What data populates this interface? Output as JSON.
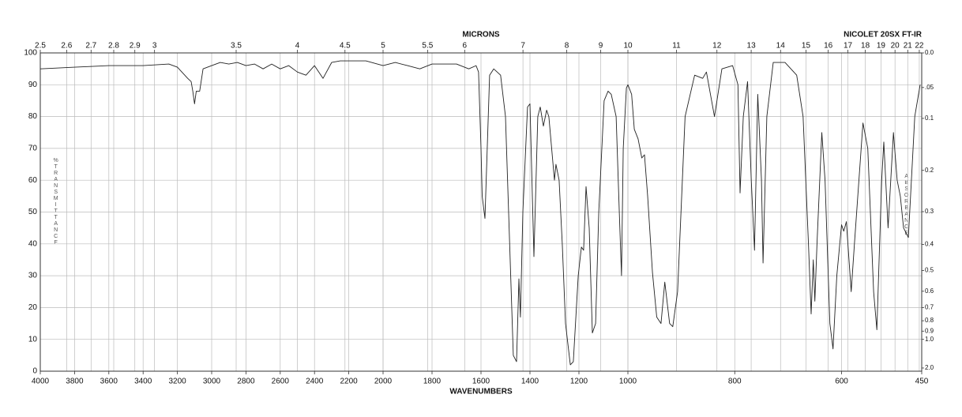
{
  "chart_data": {
    "type": "line",
    "title": "NICOLET 20SX FT-IR",
    "top_axis_label": "MICRONS",
    "xlabel": "WAVENUMBERS",
    "ylabel": "%TRANSMITTANCE",
    "y2label": "ABSORBANCE",
    "x_scale_breaks": [
      2000,
      1000
    ],
    "xlim": [
      4000,
      450
    ],
    "xticks": [
      4000,
      3800,
      3600,
      3400,
      3200,
      3000,
      2800,
      2600,
      2400,
      2200,
      2000,
      1800,
      1600,
      1400,
      1200,
      1000,
      800,
      600,
      450
    ],
    "micron_ticks": [
      2.5,
      2.6,
      2.7,
      2.8,
      2.9,
      3,
      3.5,
      4,
      4.5,
      5,
      5.5,
      6,
      7,
      8,
      9,
      10,
      11,
      12,
      13,
      14,
      15,
      16,
      17,
      18,
      19,
      20,
      21,
      22
    ],
    "ylim": [
      0,
      100
    ],
    "yticks": [
      0,
      10,
      20,
      30,
      40,
      50,
      60,
      70,
      80,
      90,
      100
    ],
    "y2ticks": [
      {
        "value": 0,
        "label": "0.0"
      },
      {
        "value": 0.05,
        "label": ".05"
      },
      0.1,
      0.2,
      0.3,
      0.4,
      0.5,
      0.6,
      0.7,
      0.8,
      0.9,
      {
        "value": 1,
        "label": "1.0"
      },
      {
        "value": 2,
        "label": "2.0"
      }
    ],
    "grid": true,
    "series": [
      {
        "color": "#222222",
        "x": [
          4000,
          3800,
          3600,
          3400,
          3250,
          3200,
          3140,
          3120,
          3110,
          3100,
          3090,
          3070,
          3050,
          3000,
          2950,
          2900,
          2850,
          2800,
          2750,
          2700,
          2650,
          2600,
          2550,
          2500,
          2450,
          2400,
          2350,
          2300,
          2250,
          2200,
          2100,
          2000,
          1950,
          1900,
          1850,
          1800,
          1700,
          1650,
          1620,
          1610,
          1600,
          1595,
          1584,
          1565,
          1548,
          1520,
          1500,
          1468,
          1455,
          1445,
          1439,
          1429,
          1410,
          1400,
          1384,
          1368,
          1358,
          1345,
          1332,
          1323,
          1300,
          1294,
          1281,
          1268,
          1255,
          1235,
          1223,
          1203,
          1190,
          1181,
          1171,
          1158,
          1145,
          1132,
          1119,
          1097,
          1081,
          1068,
          1048,
          1035,
          1026,
          1019,
          1006,
          1000,
          993,
          988,
          981,
          974,
          969,
          963,
          954,
          946,
          938,
          931,
          922,
          916,
          907,
          893,
          875,
          860,
          853,
          838,
          824,
          804,
          794,
          790,
          784,
          776,
          769,
          763,
          757,
          750,
          747,
          740,
          728,
          706,
          684,
          672,
          662,
          657,
          653,
          650,
          646,
          637,
          631,
          622,
          616,
          609,
          600,
          596,
          591,
          582,
          576,
          560,
          551,
          540,
          534,
          525,
          521,
          513,
          503,
          496,
          490,
          484,
          475,
          463,
          453
        ],
        "values": [
          95,
          95.5,
          96,
          96,
          96.5,
          95.5,
          92,
          91,
          88,
          84,
          88,
          88,
          95,
          96,
          97,
          96.5,
          97,
          96,
          96.5,
          95,
          96.5,
          95,
          96,
          94,
          93,
          96,
          92,
          97,
          97.5,
          97.5,
          97.5,
          96,
          97,
          96,
          95,
          96.5,
          96.5,
          95,
          96,
          94,
          70,
          55,
          48,
          93,
          95,
          93,
          80,
          5,
          3,
          29,
          17,
          50,
          83,
          84,
          36,
          80,
          83,
          77,
          82,
          80,
          60,
          65,
          60,
          40,
          15,
          2,
          3,
          30,
          39,
          38,
          58,
          45,
          12,
          15,
          50,
          85,
          88,
          87,
          80,
          50,
          30,
          70,
          89,
          90,
          87,
          76,
          73,
          67,
          68,
          55,
          31,
          17,
          15,
          28,
          15,
          14,
          25,
          80,
          93,
          92,
          94,
          80,
          95,
          96,
          90,
          56,
          80,
          91,
          60,
          38,
          87,
          60,
          34,
          80,
          97,
          97,
          93,
          80,
          40,
          18,
          35,
          22,
          40,
          75,
          60,
          15,
          7,
          30,
          46,
          44,
          47,
          25,
          40,
          78,
          70,
          25,
          13,
          60,
          72,
          45,
          75,
          60,
          55,
          45,
          42,
          80,
          90
        ]
      }
    ]
  }
}
